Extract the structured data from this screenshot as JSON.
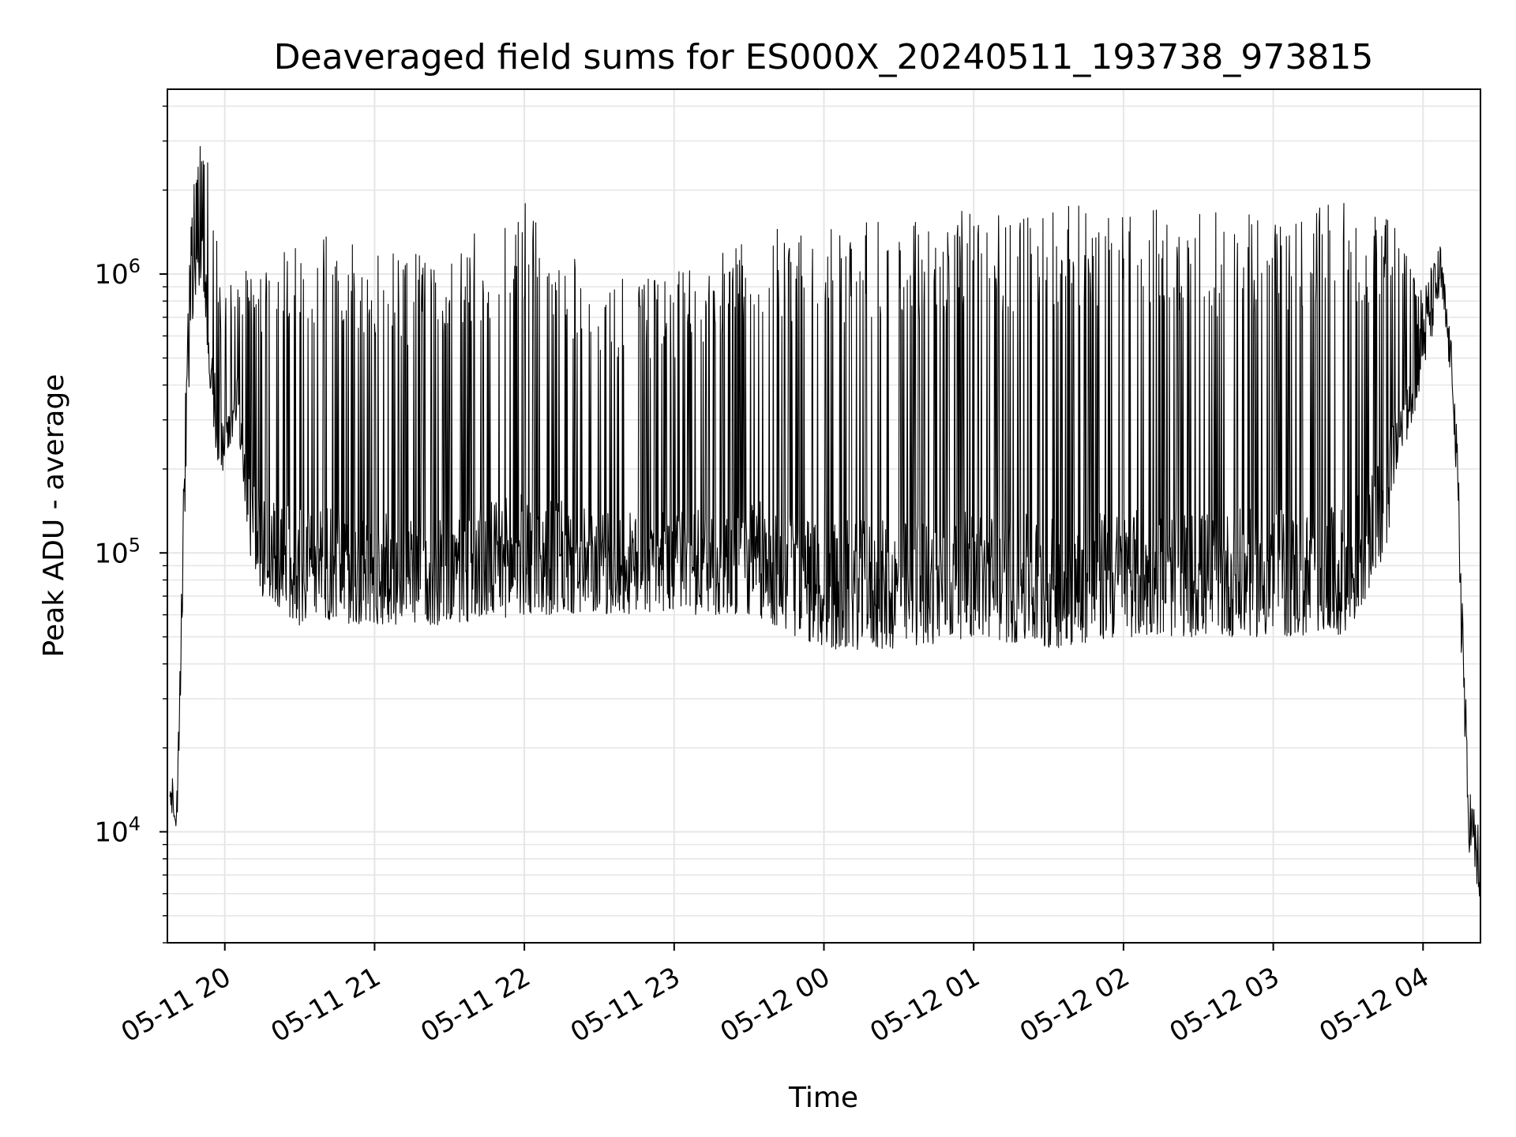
{
  "chart_data": {
    "type": "line",
    "title": "Deaveraged field sums for ES000X_20240511_193738_973815",
    "xlabel": "Time",
    "ylabel": "Peak ADU - average",
    "x_scale": "time",
    "y_scale": "log",
    "xlim": [
      "2024-05-11 19:37",
      "2024-05-12 04:23"
    ],
    "ylim": [
      4000,
      4600000
    ],
    "grid": true,
    "legend": "none",
    "x_ticks": [
      "05-11 20",
      "05-11 21",
      "05-11 22",
      "05-11 23",
      "05-12 00",
      "05-12 01",
      "05-12 02",
      "05-12 03",
      "05-12 04"
    ],
    "y_ticks": [
      {
        "base": "10",
        "exp": "4",
        "value": 10000
      },
      {
        "base": "10",
        "exp": "5",
        "value": 100000
      },
      {
        "base": "10",
        "exp": "6",
        "value": 1000000
      }
    ],
    "line_color": "#000000",
    "grid_color": "#e6e6e6",
    "series": [
      {
        "envelope": [
          {
            "t": "2024-05-11 19:38",
            "min": 10000,
            "max": 16000
          },
          {
            "t": "2024-05-11 19:41",
            "min": 10000,
            "max": 15000
          },
          {
            "t": "2024-05-11 19:45",
            "min": 300000,
            "max": 900000
          },
          {
            "t": "2024-05-11 19:48",
            "min": 800000,
            "max": 2500000
          },
          {
            "t": "2024-05-11 19:51",
            "min": 1000000,
            "max": 3500000
          },
          {
            "t": "2024-05-11 19:55",
            "min": 300000,
            "max": 2500000
          },
          {
            "t": "2024-05-11 19:58",
            "min": 180000,
            "max": 900000
          },
          {
            "t": "2024-05-11 20:05",
            "min": 300000,
            "max": 1000000
          },
          {
            "t": "2024-05-11 20:10",
            "min": 100000,
            "max": 1100000
          },
          {
            "t": "2024-05-11 20:15",
            "min": 70000,
            "max": 1000000
          },
          {
            "t": "2024-05-11 20:30",
            "min": 55000,
            "max": 1500000
          },
          {
            "t": "2024-05-11 21:00",
            "min": 55000,
            "max": 1200000
          },
          {
            "t": "2024-05-11 21:30",
            "min": 55000,
            "max": 1200000
          },
          {
            "t": "2024-05-11 22:00",
            "min": 60000,
            "max": 1900000
          },
          {
            "t": "2024-05-11 22:30",
            "min": 60000,
            "max": 1000000
          },
          {
            "t": "2024-05-11 23:00",
            "min": 60000,
            "max": 1000000
          },
          {
            "t": "2024-05-11 23:30",
            "min": 60000,
            "max": 1500000
          },
          {
            "t": "2024-05-12 00:00",
            "min": 45000,
            "max": 1600000
          },
          {
            "t": "2024-05-12 00:30",
            "min": 45000,
            "max": 1600000
          },
          {
            "t": "2024-05-12 01:00",
            "min": 50000,
            "max": 1700000
          },
          {
            "t": "2024-05-12 01:30",
            "min": 45000,
            "max": 1800000
          },
          {
            "t": "2024-05-12 02:00",
            "min": 50000,
            "max": 1700000
          },
          {
            "t": "2024-05-12 02:30",
            "min": 50000,
            "max": 1700000
          },
          {
            "t": "2024-05-12 03:00",
            "min": 50000,
            "max": 1700000
          },
          {
            "t": "2024-05-12 03:30",
            "min": 50000,
            "max": 1800000
          },
          {
            "t": "2024-05-12 03:45",
            "min": 100000,
            "max": 1700000
          },
          {
            "t": "2024-05-12 03:50",
            "min": 200000,
            "max": 1500000
          },
          {
            "t": "2024-05-12 04:00",
            "min": 400000,
            "max": 900000
          },
          {
            "t": "2024-05-12 04:07",
            "min": 800000,
            "max": 1300000
          },
          {
            "t": "2024-05-12 04:12",
            "min": 350000,
            "max": 500000
          },
          {
            "t": "2024-05-12 04:15",
            "min": 50000,
            "max": 150000
          },
          {
            "t": "2024-05-12 04:18",
            "min": 9000,
            "max": 16000
          },
          {
            "t": "2024-05-12 04:23",
            "min": 5000,
            "max": 10000
          }
        ]
      }
    ]
  }
}
